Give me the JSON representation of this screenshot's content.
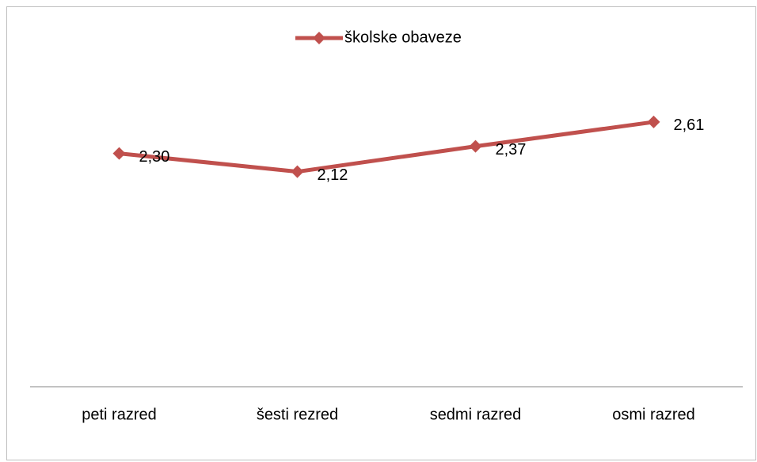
{
  "chart_data": {
    "type": "line",
    "categories": [
      "peti razred",
      "šesti rezred",
      "sedmi razred",
      "osmi razred"
    ],
    "series": [
      {
        "name": "školske obaveze",
        "color": "#c0504d",
        "values": [
          2.3,
          2.12,
          2.37,
          2.61
        ],
        "value_labels": [
          "2,30",
          "2,12",
          "2,37",
          "2,61"
        ]
      }
    ],
    "ylim": [
      0,
      3
    ],
    "legend": "top"
  }
}
